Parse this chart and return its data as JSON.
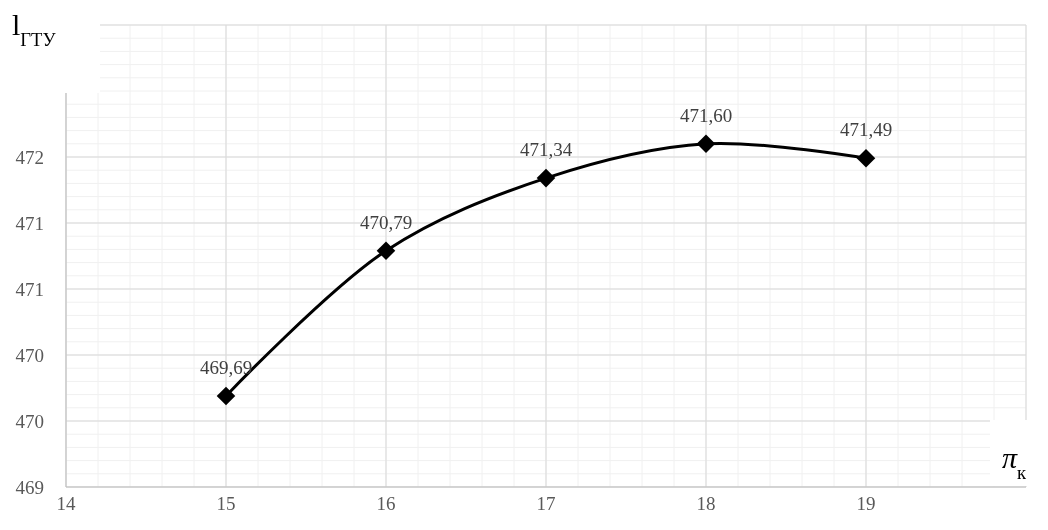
{
  "chart_data": {
    "type": "line",
    "xlabel": "π$_{к}$",
    "ylabel": "l$_{ГТУ}$",
    "x": [
      15,
      16,
      17,
      18,
      19
    ],
    "series": [
      {
        "color": "#000000",
        "values": [
          469.69,
          470.79,
          471.34,
          471.6,
          471.49
        ],
        "value_labels": [
          "469,69",
          "470,79",
          "471,34",
          "471,60",
          "471,49"
        ]
      }
    ],
    "xlim": [
      14,
      20
    ],
    "xticks": [
      14,
      15,
      16,
      17,
      18,
      19
    ],
    "ylim": [
      469,
      472.5
    ],
    "yticks": [
      {
        "value": 469,
        "label": "469"
      },
      {
        "value": 469.5,
        "label": "470"
      },
      {
        "value": 470,
        "label": "470"
      },
      {
        "value": 470.5,
        "label": "471"
      },
      {
        "value": 471,
        "label": "471"
      },
      {
        "value": 471.5,
        "label": "472"
      }
    ],
    "grid": true,
    "marker": "diamond",
    "line_style": "solid"
  }
}
